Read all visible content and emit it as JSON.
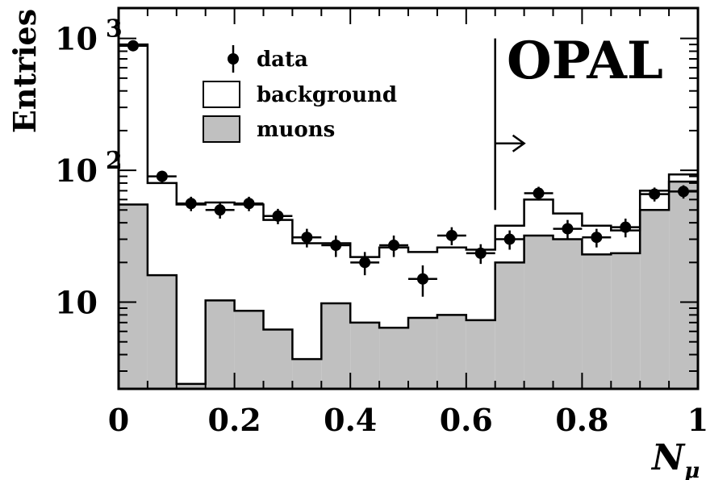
{
  "chart_data": {
    "type": "bar",
    "title": "",
    "xlabel": "N",
    "xlabel_subscript": "μ",
    "ylabel": "Entries",
    "watermark": "OPAL",
    "xlim": [
      0,
      1
    ],
    "ylim": [
      2.2,
      1700
    ],
    "yscale": "log",
    "x_ticks": [
      {
        "value": 0,
        "label": "0"
      },
      {
        "value": 0.2,
        "label": "0.2"
      },
      {
        "value": 0.4,
        "label": "0.4"
      },
      {
        "value": 0.6,
        "label": "0.6"
      },
      {
        "value": 0.8,
        "label": "0.8"
      },
      {
        "value": 1,
        "label": "1"
      }
    ],
    "y_ticks": [
      {
        "value": 10,
        "base": "10",
        "exp": ""
      },
      {
        "value": 100,
        "base": "10",
        "exp": "2"
      },
      {
        "value": 1000,
        "base": "10",
        "exp": "3"
      }
    ],
    "bin_edges": [
      0,
      0.05,
      0.1,
      0.15,
      0.2,
      0.25,
      0.3,
      0.35,
      0.4,
      0.45,
      0.5,
      0.55,
      0.6,
      0.65,
      0.7,
      0.75,
      0.8,
      0.85,
      0.9,
      0.95,
      1.0
    ],
    "series": [
      {
        "name": "background",
        "kind": "histogram-outline",
        "values": [
          900,
          80,
          55,
          57,
          55,
          42,
          28,
          28,
          22,
          26,
          24,
          26,
          25,
          38,
          60,
          47,
          38,
          35,
          70,
          93
        ]
      },
      {
        "name": "muons",
        "kind": "histogram-filled",
        "color": "#c0c0c0",
        "values": [
          55,
          16,
          2.4,
          10.3,
          8.6,
          6.2,
          3.7,
          9.8,
          7.0,
          6.4,
          7.6,
          8.0,
          7.3,
          20,
          32,
          30,
          23,
          23.5,
          50,
          82
        ]
      },
      {
        "name": "data",
        "kind": "points",
        "x": [
          0.025,
          0.075,
          0.125,
          0.175,
          0.225,
          0.275,
          0.325,
          0.375,
          0.425,
          0.475,
          0.525,
          0.575,
          0.625,
          0.675,
          0.725,
          0.775,
          0.825,
          0.875,
          0.925,
          0.975
        ],
        "values": [
          880,
          90,
          56,
          50,
          56,
          45,
          31,
          27,
          20,
          27,
          15,
          32,
          23.5,
          30,
          67,
          36,
          31,
          37,
          66,
          69
        ],
        "err_low": [
          30,
          9,
          7,
          7,
          7,
          6,
          5,
          5,
          4,
          5,
          4,
          5,
          4,
          5,
          8,
          6,
          5,
          6,
          8,
          8
        ],
        "err_high": [
          30,
          9,
          7,
          7,
          7,
          6,
          5,
          5,
          4,
          5,
          4,
          5,
          4,
          5,
          8,
          6,
          5,
          6,
          8,
          8
        ]
      }
    ],
    "cut": {
      "x": 0.65,
      "y_low": 50,
      "y_high": 1000,
      "arrow_y": 160,
      "arrow_to": 0.7
    },
    "legend": {
      "placement": "top-left",
      "entries": [
        {
          "label": "data",
          "symbol": "point"
        },
        {
          "label": "background",
          "symbol": "open-box"
        },
        {
          "label": "muons",
          "symbol": "filled-box"
        }
      ]
    },
    "colors": {
      "muon_fill": "#c0c0c0",
      "line": "#000000"
    },
    "grid": false
  }
}
